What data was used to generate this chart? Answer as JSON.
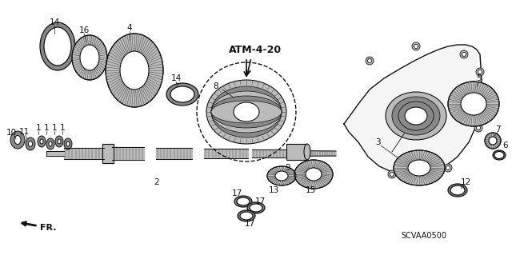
{
  "bg_color": "#ffffff",
  "code": "SCVAA0500",
  "atm_label": "ATM-4-20"
}
